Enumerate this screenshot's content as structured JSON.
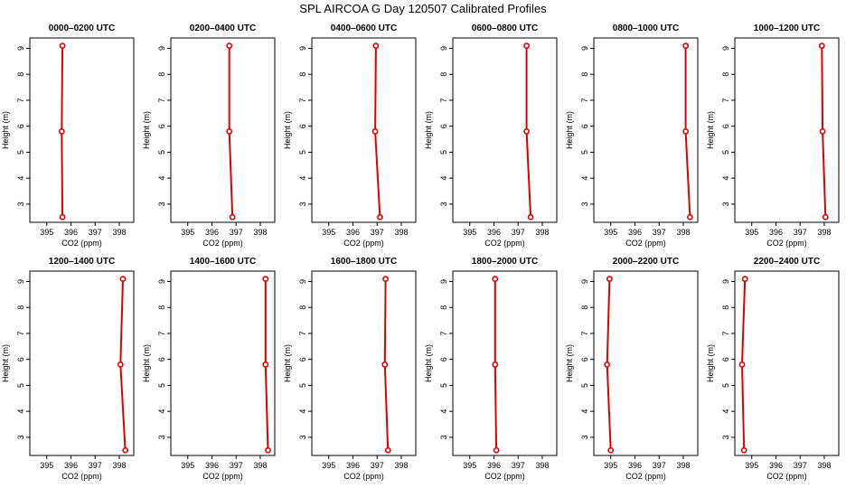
{
  "title": "SPL AIRCOA G  Day 120507  Calibrated Profiles",
  "colors": {
    "line": "#dd0000",
    "axis": "#000000",
    "background": "#ffffff"
  },
  "chart_data": [
    {
      "type": "line",
      "title": "0000–0200 UTC",
      "xlabel": "CO2 (ppm)",
      "ylabel": "Height (m)",
      "xlim": [
        394.3,
        398.6
      ],
      "ylim": [
        2.3,
        9.4
      ],
      "xticks": [
        "395",
        "396",
        "397",
        "398"
      ],
      "yticks": [
        "3",
        "4",
        "5",
        "6",
        "7",
        "8",
        "9"
      ],
      "x": [
        395.65,
        395.62,
        395.65
      ],
      "y": [
        9.1,
        5.8,
        2.5
      ]
    },
    {
      "type": "line",
      "title": "0200–0400 UTC",
      "xlabel": "CO2 (ppm)",
      "ylabel": "Height (m)",
      "xlim": [
        394.3,
        398.6
      ],
      "ylim": [
        2.3,
        9.4
      ],
      "xticks": [
        "395",
        "396",
        "397",
        "398"
      ],
      "yticks": [
        "3",
        "4",
        "5",
        "6",
        "7",
        "8",
        "9"
      ],
      "x": [
        396.72,
        396.72,
        396.85
      ],
      "y": [
        9.1,
        5.8,
        2.5
      ]
    },
    {
      "type": "line",
      "title": "0400–0600 UTC",
      "xlabel": "CO2 (ppm)",
      "ylabel": "Height (m)",
      "xlim": [
        394.3,
        398.6
      ],
      "ylim": [
        2.3,
        9.4
      ],
      "xticks": [
        "395",
        "396",
        "397",
        "398"
      ],
      "yticks": [
        "3",
        "4",
        "5",
        "6",
        "7",
        "8",
        "9"
      ],
      "x": [
        396.95,
        396.92,
        397.12
      ],
      "y": [
        9.1,
        5.8,
        2.5
      ]
    },
    {
      "type": "line",
      "title": "0600–0800 UTC",
      "xlabel": "CO2 (ppm)",
      "ylabel": "Height (m)",
      "xlim": [
        394.3,
        398.6
      ],
      "ylim": [
        2.3,
        9.4
      ],
      "xticks": [
        "395",
        "396",
        "397",
        "398"
      ],
      "yticks": [
        "3",
        "4",
        "5",
        "6",
        "7",
        "8",
        "9"
      ],
      "x": [
        397.35,
        397.35,
        397.52
      ],
      "y": [
        9.1,
        5.8,
        2.5
      ]
    },
    {
      "type": "line",
      "title": "0800–1000 UTC",
      "xlabel": "CO2 (ppm)",
      "ylabel": "Height (m)",
      "xlim": [
        394.3,
        398.6
      ],
      "ylim": [
        2.3,
        9.4
      ],
      "xticks": [
        "395",
        "396",
        "397",
        "398"
      ],
      "yticks": [
        "3",
        "4",
        "5",
        "6",
        "7",
        "8",
        "9"
      ],
      "x": [
        398.1,
        398.1,
        398.28
      ],
      "y": [
        9.1,
        5.8,
        2.5
      ]
    },
    {
      "type": "line",
      "title": "1000–1200 UTC",
      "xlabel": "CO2 (ppm)",
      "ylabel": "Height (m)",
      "xlim": [
        394.3,
        398.6
      ],
      "ylim": [
        2.3,
        9.4
      ],
      "xticks": [
        "395",
        "396",
        "397",
        "398"
      ],
      "yticks": [
        "3",
        "4",
        "5",
        "6",
        "7",
        "8",
        "9"
      ],
      "x": [
        397.9,
        397.93,
        398.05
      ],
      "y": [
        9.1,
        5.8,
        2.5
      ]
    },
    {
      "type": "line",
      "title": "1200–1400 UTC",
      "xlabel": "CO2 (ppm)",
      "ylabel": "Height (m)",
      "xlim": [
        394.3,
        398.6
      ],
      "ylim": [
        2.3,
        9.4
      ],
      "xticks": [
        "395",
        "396",
        "397",
        "398"
      ],
      "yticks": [
        "3",
        "4",
        "5",
        "6",
        "7",
        "8",
        "9"
      ],
      "x": [
        398.15,
        398.05,
        398.25
      ],
      "y": [
        9.1,
        5.8,
        2.5
      ]
    },
    {
      "type": "line",
      "title": "1400–1600 UTC",
      "xlabel": "CO2 (ppm)",
      "ylabel": "Height (m)",
      "xlim": [
        394.3,
        398.6
      ],
      "ylim": [
        2.3,
        9.4
      ],
      "xticks": [
        "395",
        "396",
        "397",
        "398"
      ],
      "yticks": [
        "3",
        "4",
        "5",
        "6",
        "7",
        "8",
        "9"
      ],
      "x": [
        398.22,
        398.22,
        398.32
      ],
      "y": [
        9.1,
        5.8,
        2.5
      ]
    },
    {
      "type": "line",
      "title": "1600–1800 UTC",
      "xlabel": "CO2 (ppm)",
      "ylabel": "Height (m)",
      "xlim": [
        394.3,
        398.6
      ],
      "ylim": [
        2.3,
        9.4
      ],
      "xticks": [
        "395",
        "396",
        "397",
        "398"
      ],
      "yticks": [
        "3",
        "4",
        "5",
        "6",
        "7",
        "8",
        "9"
      ],
      "x": [
        397.35,
        397.32,
        397.45
      ],
      "y": [
        9.1,
        5.8,
        2.5
      ]
    },
    {
      "type": "line",
      "title": "1800–2000 UTC",
      "xlabel": "CO2 (ppm)",
      "ylabel": "Height (m)",
      "xlim": [
        394.3,
        398.6
      ],
      "ylim": [
        2.3,
        9.4
      ],
      "xticks": [
        "395",
        "396",
        "397",
        "398"
      ],
      "yticks": [
        "3",
        "4",
        "5",
        "6",
        "7",
        "8",
        "9"
      ],
      "x": [
        396.05,
        396.05,
        396.1
      ],
      "y": [
        9.1,
        5.8,
        2.5
      ]
    },
    {
      "type": "line",
      "title": "2000–2200 UTC",
      "xlabel": "CO2 (ppm)",
      "ylabel": "Height (m)",
      "xlim": [
        394.3,
        398.6
      ],
      "ylim": [
        2.3,
        9.4
      ],
      "xticks": [
        "395",
        "396",
        "397",
        "398"
      ],
      "yticks": [
        "3",
        "4",
        "5",
        "6",
        "7",
        "8",
        "9"
      ],
      "x": [
        394.95,
        394.85,
        395.0
      ],
      "y": [
        9.1,
        5.8,
        2.5
      ]
    },
    {
      "type": "line",
      "title": "2200–2400 UTC",
      "xlabel": "CO2 (ppm)",
      "ylabel": "Height (m)",
      "xlim": [
        394.3,
        398.6
      ],
      "ylim": [
        2.3,
        9.4
      ],
      "xticks": [
        "395",
        "396",
        "397",
        "398"
      ],
      "yticks": [
        "3",
        "4",
        "5",
        "6",
        "7",
        "8",
        "9"
      ],
      "x": [
        394.72,
        394.6,
        394.68
      ],
      "y": [
        9.1,
        5.8,
        2.5
      ]
    }
  ]
}
